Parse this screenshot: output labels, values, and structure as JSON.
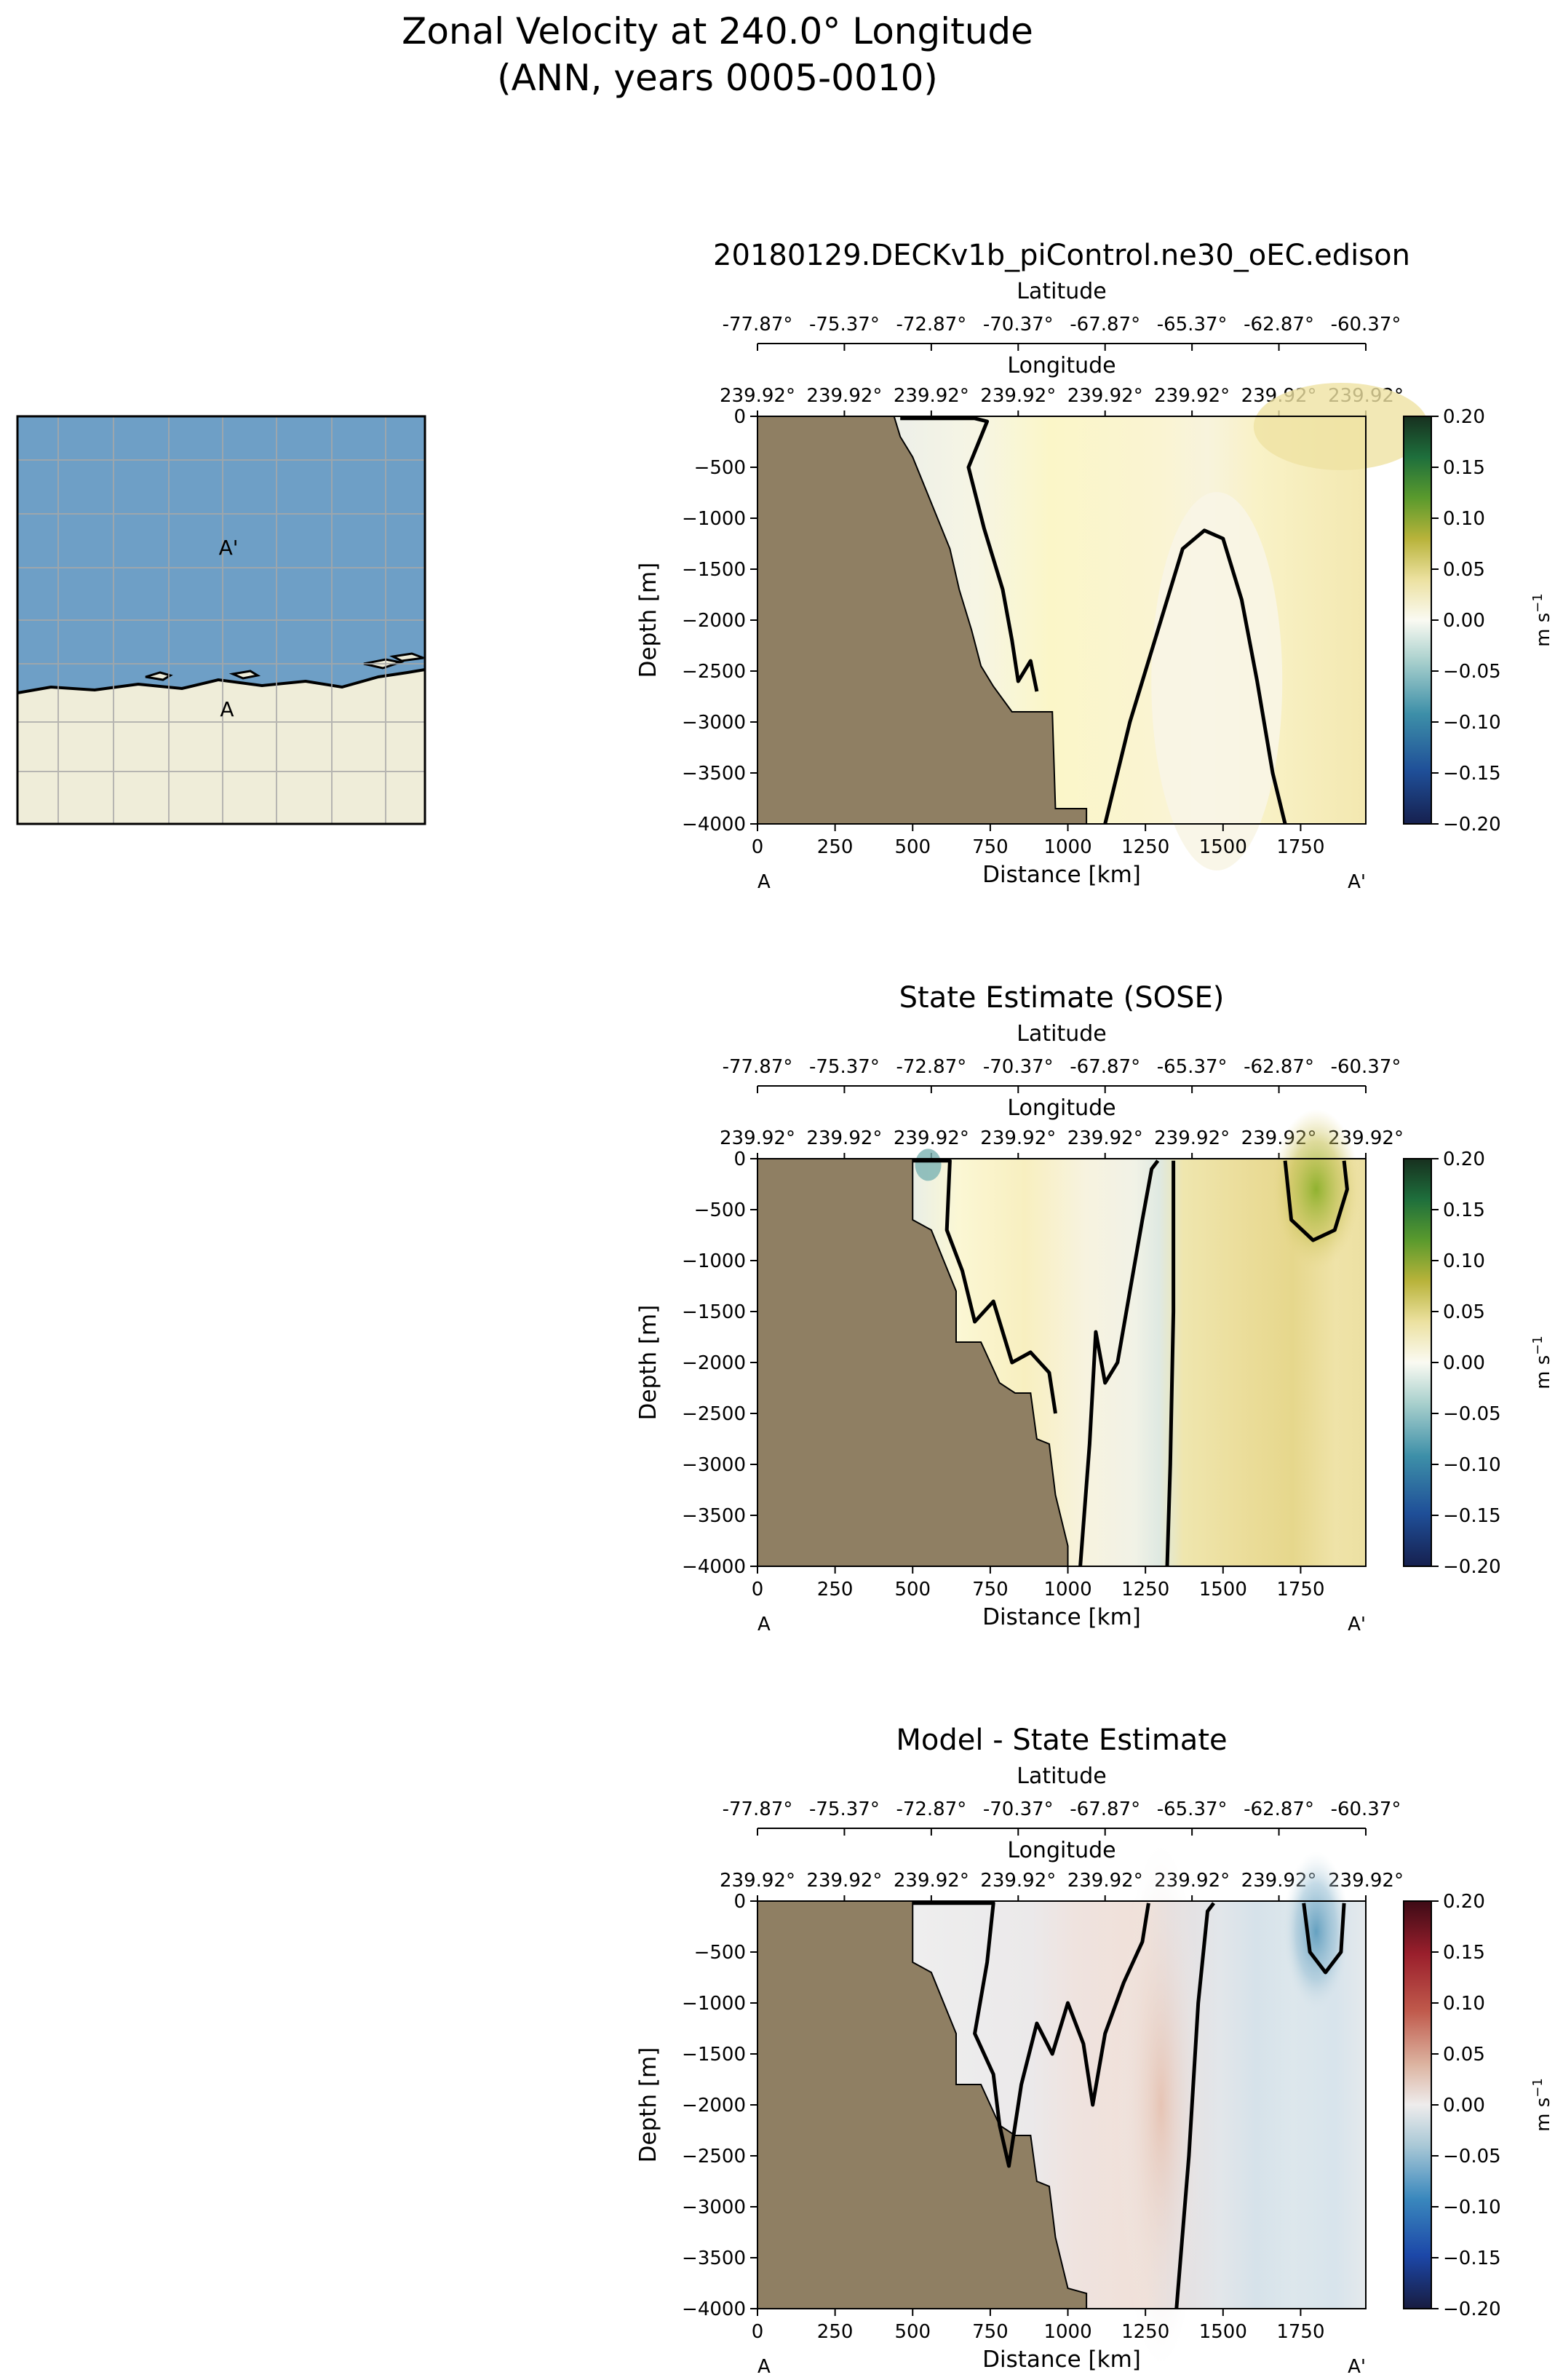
{
  "figure": {
    "title_line1": "Zonal Velocity at 240.0° Longitude",
    "title_line2": "(ANN, years 0005-0010)"
  },
  "colors": {
    "land": "#8f7f63",
    "ocean": "#6e9fc6",
    "antarctica": "#efedd9",
    "contour": "#000000",
    "grid": "#a8a8a8"
  },
  "inset_map": {
    "labels": {
      "start": "A",
      "end": "A'"
    },
    "gridlines": true,
    "coastline": true
  },
  "axis_common": {
    "xlabel": "Distance [km]",
    "ylabel": "Depth [m]",
    "top_axis1_label": "Latitude",
    "top_axis2_label": "Longitude",
    "section_start": "A",
    "section_end": "A'",
    "cbar_label": "m s",
    "cbar_label_exp": "−1"
  },
  "chart_data": [
    {
      "type": "heatmap",
      "title": "20180129.DECKv1b_piControl.ne30_oEC.edison",
      "xlabel": "Distance [km]",
      "ylabel": "Depth [m]",
      "xlim": [
        0,
        1960
      ],
      "ylim": [
        -4000,
        0
      ],
      "xticks": [
        "0",
        "250",
        "500",
        "750",
        "1000",
        "1250",
        "1500",
        "1750"
      ],
      "yticks": [
        "0",
        "−500",
        "−1000",
        "−1500",
        "−2000",
        "−2500",
        "−3000",
        "−3500",
        "−4000"
      ],
      "latitude_ticks": [
        "-77.87°",
        "-75.37°",
        "-72.87°",
        "-70.37°",
        "-67.87°",
        "-65.37°",
        "-62.87°",
        "-60.37°"
      ],
      "longitude_ticks": [
        "239.92°",
        "239.92°",
        "239.92°",
        "239.92°",
        "239.92°",
        "239.92°",
        "239.92°",
        "239.92°"
      ],
      "colorbar": {
        "colormap": "white-yellow-green-teal-blue",
        "range": [
          -0.2,
          0.2
        ],
        "label": "m s-1",
        "ticks": [
          "0.20",
          "0.15",
          "0.10",
          "0.05",
          "0.00",
          "−0.05",
          "−0.10",
          "−0.15",
          "−0.20"
        ]
      },
      "bathymetry_depth_by_distance": [
        [
          0,
          0
        ],
        [
          440,
          0
        ],
        [
          460,
          -200
        ],
        [
          500,
          -400
        ],
        [
          540,
          -700
        ],
        [
          580,
          -1000
        ],
        [
          620,
          -1300
        ],
        [
          650,
          -1700
        ],
        [
          690,
          -2100
        ],
        [
          720,
          -2450
        ],
        [
          760,
          -2650
        ],
        [
          820,
          -2900
        ],
        [
          950,
          -2900
        ],
        [
          960,
          -3850
        ],
        [
          1060,
          -3850
        ],
        [
          1060,
          -4000
        ]
      ],
      "field_description": "mostly weakly positive (0.01–0.03), near-zero band along slope and in deep column near 1450 km",
      "zero_contours": [
        [
          [
            460,
            -20
          ],
          [
            700,
            -20
          ],
          [
            740,
            -50
          ],
          [
            720,
            -200
          ],
          [
            680,
            -500
          ],
          [
            730,
            -1100
          ],
          [
            790,
            -1700
          ],
          [
            820,
            -2200
          ],
          [
            840,
            -2600
          ],
          [
            880,
            -2400
          ],
          [
            900,
            -2700
          ]
        ],
        [
          [
            1120,
            -4000
          ],
          [
            1200,
            -3000
          ],
          [
            1300,
            -2000
          ],
          [
            1370,
            -1300
          ],
          [
            1440,
            -1120
          ],
          [
            1500,
            -1200
          ],
          [
            1560,
            -1800
          ],
          [
            1610,
            -2600
          ],
          [
            1660,
            -3500
          ],
          [
            1700,
            -4000
          ]
        ]
      ]
    },
    {
      "type": "heatmap",
      "title": "State Estimate (SOSE)",
      "xlabel": "Distance [km]",
      "ylabel": "Depth [m]",
      "xlim": [
        0,
        1960
      ],
      "ylim": [
        -4000,
        0
      ],
      "xticks": [
        "0",
        "250",
        "500",
        "750",
        "1000",
        "1250",
        "1500",
        "1750"
      ],
      "yticks": [
        "0",
        "−500",
        "−1000",
        "−1500",
        "−2000",
        "−2500",
        "−3000",
        "−3500",
        "−4000"
      ],
      "latitude_ticks": [
        "-77.87°",
        "-75.37°",
        "-72.87°",
        "-70.37°",
        "-67.87°",
        "-65.37°",
        "-62.87°",
        "-60.37°"
      ],
      "longitude_ticks": [
        "239.92°",
        "239.92°",
        "239.92°",
        "239.92°",
        "239.92°",
        "239.92°",
        "239.92°",
        "239.92°"
      ],
      "colorbar": {
        "colormap": "white-yellow-green-teal-blue",
        "range": [
          -0.2,
          0.2
        ],
        "label": "m s-1",
        "ticks": [
          "0.20",
          "0.15",
          "0.10",
          "0.05",
          "0.00",
          "−0.05",
          "−0.10",
          "−0.15",
          "−0.20"
        ]
      },
      "bathymetry_depth_by_distance": [
        [
          0,
          0
        ],
        [
          500,
          0
        ],
        [
          500,
          -600
        ],
        [
          560,
          -700
        ],
        [
          600,
          -1000
        ],
        [
          640,
          -1300
        ],
        [
          640,
          -1800
        ],
        [
          720,
          -1800
        ],
        [
          780,
          -2200
        ],
        [
          830,
          -2300
        ],
        [
          880,
          -2300
        ],
        [
          900,
          -2750
        ],
        [
          940,
          -2800
        ],
        [
          960,
          -3300
        ],
        [
          1000,
          -3800
        ],
        [
          1000,
          -4000
        ]
      ],
      "field_description": "positive (0.02–0.04) east of 1350 km with strong positive core ~0.08 near 1800 km at surface; near-zero/slightly negative between 500 and 1350 km",
      "zero_contours": [
        [
          [
            500,
            -20
          ],
          [
            620,
            -20
          ],
          [
            610,
            -700
          ],
          [
            660,
            -1100
          ],
          [
            700,
            -1600
          ],
          [
            760,
            -1400
          ],
          [
            820,
            -2000
          ],
          [
            880,
            -1900
          ],
          [
            940,
            -2100
          ],
          [
            960,
            -2500
          ]
        ],
        [
          [
            1040,
            -4000
          ],
          [
            1070,
            -2800
          ],
          [
            1090,
            -1700
          ],
          [
            1120,
            -2200
          ],
          [
            1160,
            -2000
          ],
          [
            1200,
            -1300
          ],
          [
            1240,
            -600
          ],
          [
            1270,
            -100
          ],
          [
            1290,
            -20
          ]
        ],
        [
          [
            1340,
            -20
          ],
          [
            1340,
            -1500
          ],
          [
            1330,
            -3000
          ],
          [
            1320,
            -4000
          ]
        ],
        [
          [
            1700,
            -20
          ],
          [
            1720,
            -600
          ],
          [
            1790,
            -800
          ],
          [
            1860,
            -700
          ],
          [
            1900,
            -300
          ],
          [
            1890,
            -20
          ]
        ]
      ]
    },
    {
      "type": "heatmap",
      "title": "Model - State Estimate",
      "xlabel": "Distance [km]",
      "ylabel": "Depth [m]",
      "xlim": [
        0,
        1960
      ],
      "ylim": [
        -4000,
        0
      ],
      "xticks": [
        "0",
        "250",
        "500",
        "750",
        "1000",
        "1250",
        "1500",
        "1750"
      ],
      "yticks": [
        "0",
        "−500",
        "−1000",
        "−1500",
        "−2000",
        "−2500",
        "−3000",
        "−3500",
        "−4000"
      ],
      "latitude_ticks": [
        "-77.87°",
        "-75.37°",
        "-72.87°",
        "-70.37°",
        "-67.87°",
        "-65.37°",
        "-62.87°",
        "-60.37°"
      ],
      "longitude_ticks": [
        "239.92°",
        "239.92°",
        "239.92°",
        "239.92°",
        "239.92°",
        "239.92°",
        "239.92°",
        "239.92°"
      ],
      "colorbar": {
        "colormap": "blue-white-red (balance)",
        "range": [
          -0.2,
          0.2
        ],
        "label": "m s-1",
        "ticks": [
          "0.20",
          "0.15",
          "0.10",
          "0.05",
          "0.00",
          "−0.05",
          "−0.10",
          "−0.15",
          "−0.20"
        ]
      },
      "bathymetry_depth_by_distance": [
        [
          0,
          0
        ],
        [
          500,
          0
        ],
        [
          500,
          -600
        ],
        [
          560,
          -700
        ],
        [
          600,
          -1000
        ],
        [
          640,
          -1300
        ],
        [
          640,
          -1800
        ],
        [
          720,
          -1800
        ],
        [
          780,
          -2200
        ],
        [
          830,
          -2300
        ],
        [
          880,
          -2300
        ],
        [
          900,
          -2750
        ],
        [
          940,
          -2800
        ],
        [
          960,
          -3300
        ],
        [
          1000,
          -3800
        ],
        [
          1060,
          -3850
        ],
        [
          1060,
          -4000
        ]
      ],
      "field_description": "small differences; slightly positive near 1300 km, negative core ~-0.06 near 1800 km at surface",
      "zero_contours": [
        [
          [
            500,
            -20
          ],
          [
            760,
            -20
          ],
          [
            740,
            -600
          ],
          [
            700,
            -1300
          ],
          [
            760,
            -1700
          ],
          [
            780,
            -2200
          ],
          [
            810,
            -2600
          ],
          [
            850,
            -1800
          ],
          [
            900,
            -1200
          ],
          [
            950,
            -1500
          ],
          [
            1000,
            -1000
          ],
          [
            1050,
            -1400
          ],
          [
            1080,
            -2000
          ],
          [
            1120,
            -1300
          ],
          [
            1180,
            -800
          ],
          [
            1240,
            -400
          ],
          [
            1260,
            -20
          ]
        ],
        [
          [
            1350,
            -4000
          ],
          [
            1390,
            -2500
          ],
          [
            1420,
            -1000
          ],
          [
            1450,
            -100
          ],
          [
            1470,
            -20
          ]
        ],
        [
          [
            1760,
            -20
          ],
          [
            1780,
            -500
          ],
          [
            1830,
            -700
          ],
          [
            1880,
            -500
          ],
          [
            1890,
            -20
          ]
        ]
      ]
    }
  ]
}
